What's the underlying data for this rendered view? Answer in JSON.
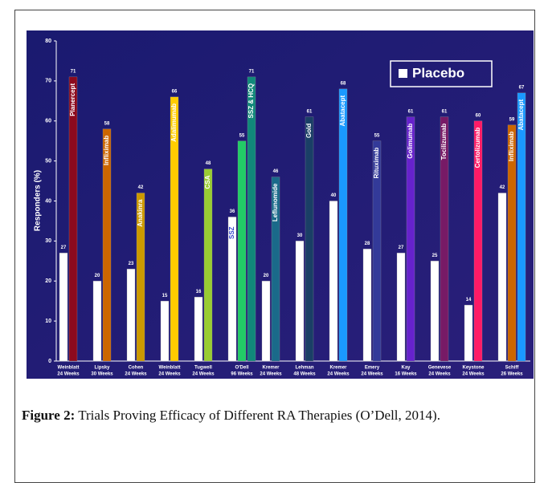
{
  "chart_data": {
    "type": "grouped-bar",
    "y_label": "Responders (%)",
    "ylim": [
      0,
      80
    ],
    "yticks": [
      0,
      10,
      20,
      30,
      40,
      50,
      60,
      70,
      80
    ],
    "legend": "top-right",
    "categories": [
      [
        "Weinblatt",
        "24 Weeks"
      ],
      [
        "Lipsky",
        "30 Weeks"
      ],
      [
        "Cohen",
        "24 Weeks"
      ],
      [
        "Weinblatt",
        "24 Weeks"
      ],
      [
        "Tugwell",
        "24 Weeks"
      ],
      [
        "O'Dell",
        "96 Weeks"
      ],
      [
        "Kremer",
        "24 Weeks"
      ],
      [
        "Lehman",
        "48 Weeks"
      ],
      [
        "Kremer",
        "24 Weeks"
      ],
      [
        "Emery",
        "24 Weeks"
      ],
      [
        "Kay",
        "16 Weeks"
      ],
      [
        "Genevese",
        "24 Weeks"
      ],
      [
        "Keystone",
        "24 Weeks"
      ],
      [
        "Schiff",
        "26 Weeks"
      ]
    ],
    "series": [
      {
        "name": "Placebo",
        "color": "#ffffff",
        "values": [
          27,
          20,
          23,
          15,
          16,
          36,
          20,
          30,
          40,
          28,
          27,
          25,
          14,
          42
        ],
        "labels": [
          null,
          null,
          null,
          null,
          null,
          "SSZ",
          null,
          null,
          null,
          null,
          null,
          null,
          null,
          null
        ]
      }
    ],
    "treatments": [
      [
        {
          "label": "Planercept",
          "value": 71,
          "color": "#8c0a1e"
        }
      ],
      [
        {
          "label": "Infliximab",
          "value": 58,
          "color": "#cc6600"
        }
      ],
      [
        {
          "label": "Anakinra",
          "value": 42,
          "color": "#cc9900"
        }
      ],
      [
        {
          "label": "Adalimumab",
          "value": 66,
          "color": "#ffcc00"
        }
      ],
      [
        {
          "label": "CSA",
          "value": 48,
          "color": "#99cc33"
        }
      ],
      [
        {
          "label": null,
          "value": 55,
          "color": "#22cc66"
        },
        {
          "label": "SSZ & HCQ",
          "value": 71,
          "color": "#11887a"
        }
      ],
      [
        {
          "label": "Leflunomide",
          "value": 46,
          "color": "#1a6a8a"
        }
      ],
      [
        {
          "label": "Gold",
          "value": 61,
          "color": "#1a3f66"
        }
      ],
      [
        {
          "label": "Abatacept",
          "value": 68,
          "color": "#1a99ff"
        }
      ],
      [
        {
          "label": "Rituximab",
          "value": 55,
          "color": "#333a99"
        }
      ],
      [
        {
          "label": "Golimumab",
          "value": 61,
          "color": "#6622cc"
        }
      ],
      [
        {
          "label": "Tocilizumab",
          "value": 61,
          "color": "#771a66"
        }
      ],
      [
        {
          "label": "Certolizumab",
          "value": 60,
          "color": "#ff1a66"
        }
      ],
      [
        {
          "label": "Infliximab",
          "value": 59,
          "color": "#cc6600"
        },
        {
          "label": "Abatacept",
          "value": 67,
          "color": "#1a99ff"
        }
      ]
    ]
  },
  "caption": {
    "label": "Figure 2:",
    "text": "Trials Proving Efficacy of Different RA Therapies (O’Dell, 2014)."
  }
}
